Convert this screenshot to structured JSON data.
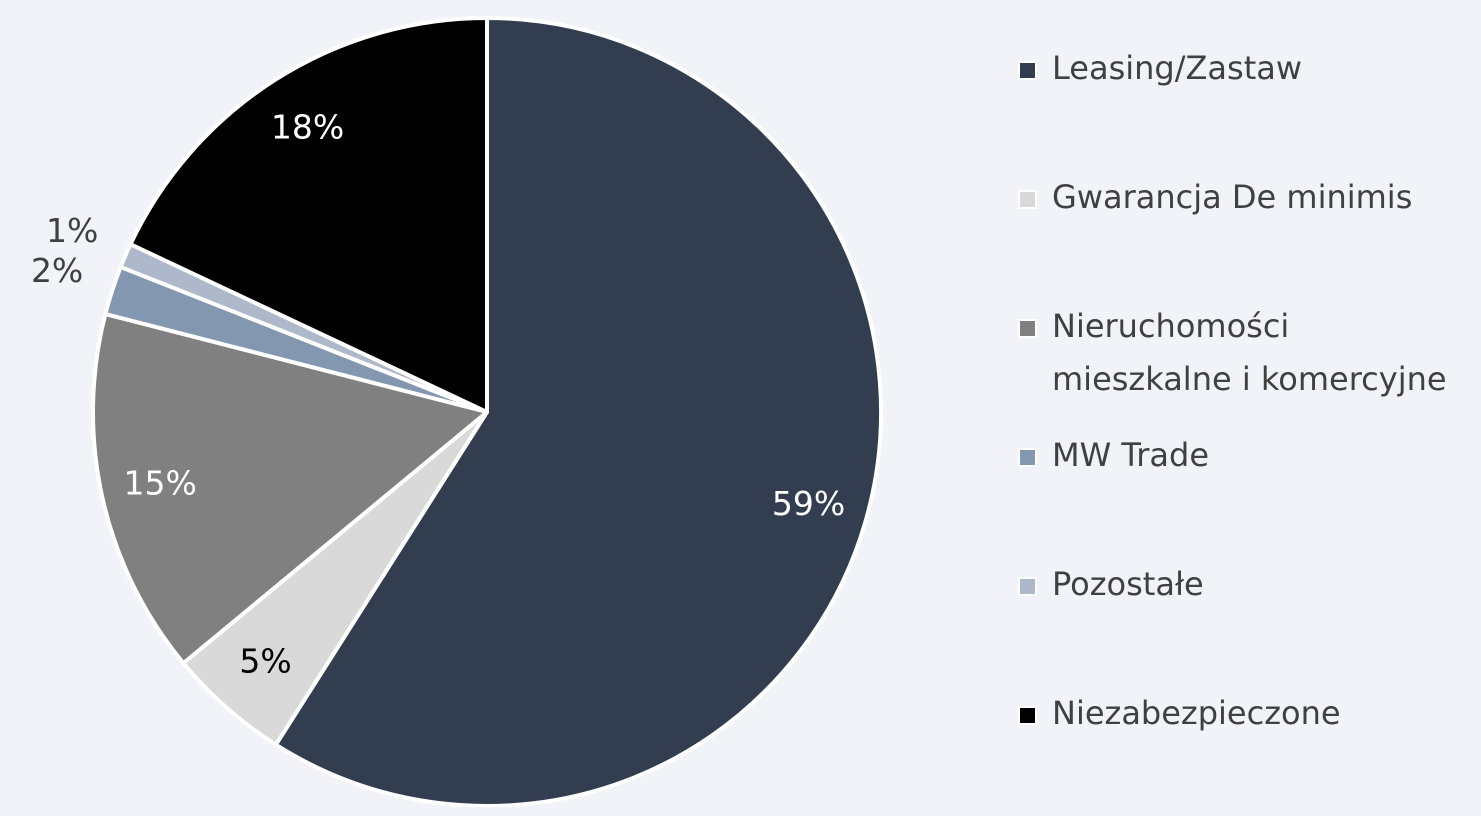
{
  "chart_data": {
    "type": "pie",
    "categories": [
      "Leasing/Zastaw",
      "Gwarancja De minimis",
      "Nieruchomości mieszkalne i komercyjne",
      "MW Trade",
      "Pozostałe",
      "Niezabezpieczone"
    ],
    "values": [
      59,
      5,
      15,
      2,
      1,
      18
    ],
    "value_labels": [
      "59%",
      "5%",
      "15%",
      "2%",
      "1%",
      "18%"
    ],
    "colors": [
      "#333d50",
      "#d9d9d9",
      "#808080",
      "#8497b0",
      "#adb9ca",
      "#000000"
    ],
    "legend": "right"
  }
}
